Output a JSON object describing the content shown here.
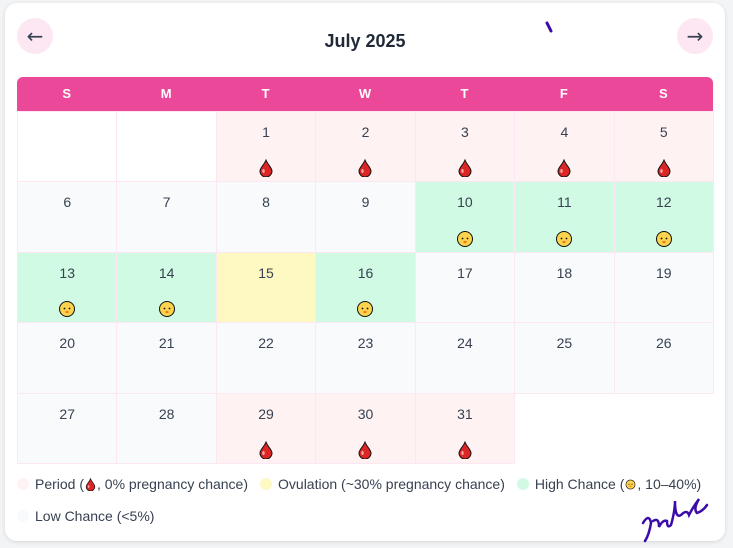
{
  "header": {
    "prev": "←",
    "title": "July 2025",
    "next": "→"
  },
  "weekdays": [
    "S",
    "M",
    "T",
    "W",
    "T",
    "F",
    "S"
  ],
  "days": [
    null,
    null,
    {
      "day": 1,
      "status": "period"
    },
    {
      "day": 2,
      "status": "period"
    },
    {
      "day": 3,
      "status": "period"
    },
    {
      "day": 4,
      "status": "period"
    },
    {
      "day": 5,
      "status": "period"
    },
    {
      "day": 6,
      "status": "low"
    },
    {
      "day": 7,
      "status": "low"
    },
    {
      "day": 8,
      "status": "low"
    },
    {
      "day": 9,
      "status": "low"
    },
    {
      "day": 10,
      "status": "high"
    },
    {
      "day": 11,
      "status": "high"
    },
    {
      "day": 12,
      "status": "high"
    },
    {
      "day": 13,
      "status": "high"
    },
    {
      "day": 14,
      "status": "high"
    },
    {
      "day": 15,
      "status": "ovulation"
    },
    {
      "day": 16,
      "status": "high"
    },
    {
      "day": 17,
      "status": "low"
    },
    {
      "day": 18,
      "status": "low"
    },
    {
      "day": 19,
      "status": "low"
    },
    {
      "day": 20,
      "status": "low"
    },
    {
      "day": 21,
      "status": "low"
    },
    {
      "day": 22,
      "status": "low"
    },
    {
      "day": 23,
      "status": "low"
    },
    {
      "day": 24,
      "status": "low"
    },
    {
      "day": 25,
      "status": "low"
    },
    {
      "day": 26,
      "status": "low"
    },
    {
      "day": 27,
      "status": "low"
    },
    {
      "day": 28,
      "status": "low"
    },
    {
      "day": 29,
      "status": "period"
    },
    {
      "day": 30,
      "status": "period"
    },
    {
      "day": 31,
      "status": "period"
    }
  ],
  "legend": [
    {
      "status": "period",
      "color": "#fef2f2",
      "icon": "drop",
      "before": "Period (",
      "after": ", 0% pregnancy chance)"
    },
    {
      "status": "ovulation",
      "color": "#fef9c3",
      "text": "Ovulation (~30% pregnancy chance)"
    },
    {
      "status": "high",
      "color": "#d1fae5",
      "icon": "baby",
      "before": "High Chance (",
      "after": ", 10–40%)"
    },
    {
      "status": "low",
      "color": "#f8fafc",
      "text": "Low Chance (<5%)"
    }
  ]
}
